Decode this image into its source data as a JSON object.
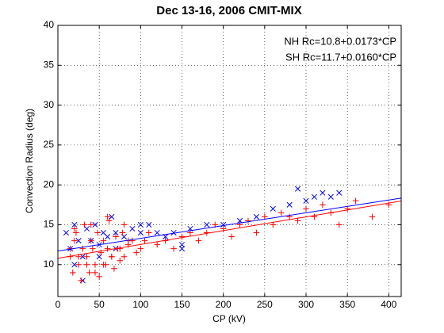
{
  "chart_data": {
    "type": "scatter",
    "title": "Dec 13-16, 2006 CMIT-MIX",
    "xlabel": "CP (kV)",
    "ylabel": "Convection Radius (deg)",
    "xlim": [
      0,
      415
    ],
    "ylim": [
      6,
      40
    ],
    "xticks": [
      0,
      50,
      100,
      150,
      200,
      250,
      300,
      350,
      400
    ],
    "yticks": [
      10,
      15,
      20,
      25,
      30,
      35,
      40
    ],
    "grid": true,
    "series": [
      {
        "color": "#0000ff",
        "marker": "x",
        "x": [
          10,
          15,
          20,
          25,
          30,
          35,
          40,
          45,
          50,
          55,
          60,
          65,
          70,
          80,
          90,
          100,
          110,
          120,
          130,
          140,
          150,
          160,
          180,
          200,
          220,
          240,
          260,
          280,
          290,
          300,
          310,
          320,
          330,
          340,
          20,
          30,
          50,
          70,
          100,
          150
        ],
        "values": [
          14,
          12,
          15,
          13,
          11,
          14.5,
          13,
          15,
          12.5,
          14,
          13.5,
          16,
          14,
          13.5,
          14.5,
          14,
          15,
          14,
          13.5,
          14,
          12.5,
          14.5,
          15,
          15,
          15.5,
          16,
          17,
          17.5,
          19.5,
          18,
          18.5,
          19,
          18.5,
          19,
          10,
          8,
          11,
          12,
          15,
          12
        ]
      },
      {
        "color": "#ff0000",
        "marker": "+",
        "x": [
          15,
          18,
          20,
          22,
          25,
          28,
          30,
          32,
          35,
          38,
          40,
          42,
          45,
          48,
          50,
          52,
          55,
          58,
          60,
          62,
          65,
          68,
          70,
          72,
          75,
          78,
          80,
          85,
          90,
          95,
          100,
          105,
          110,
          120,
          130,
          140,
          150,
          160,
          170,
          180,
          190,
          200,
          210,
          220,
          230,
          240,
          250,
          260,
          270,
          280,
          290,
          300,
          310,
          320,
          330,
          340,
          350,
          360,
          380,
          400,
          15,
          25,
          35,
          45,
          55,
          65,
          75,
          85,
          20,
          40,
          60,
          80
        ],
        "values": [
          11,
          9,
          13,
          14,
          10,
          8,
          12,
          15,
          11,
          9,
          13,
          12,
          10,
          14,
          8.5,
          11.5,
          13,
          10,
          12,
          15.5,
          11,
          9.5,
          13.5,
          12,
          10.5,
          14,
          11,
          12.5,
          13,
          11.5,
          12,
          13,
          14,
          12.5,
          13,
          12,
          13.5,
          14,
          13,
          14,
          15,
          14.5,
          13.5,
          15,
          15.5,
          14,
          16,
          15,
          16.5,
          16,
          15.5,
          17,
          16,
          17.5,
          16.5,
          15,
          17,
          18,
          16,
          17.5,
          12,
          11,
          10,
          9,
          10,
          11,
          12,
          13,
          14.5,
          15,
          16,
          15
        ]
      }
    ],
    "fits": [
      {
        "color": "#ff0000",
        "x": [
          0,
          415
        ],
        "values": [
          10.8,
          17.98
        ]
      },
      {
        "color": "#0000ff",
        "x": [
          0,
          415
        ],
        "values": [
          11.7,
          18.34
        ]
      }
    ],
    "annotations": [
      {
        "text": "NH Rc=10.8+0.0173*CP",
        "color": "#ff0000"
      },
      {
        "text": "SH Rc=11.7+0.0160*CP",
        "color": "#0000ff"
      }
    ]
  }
}
